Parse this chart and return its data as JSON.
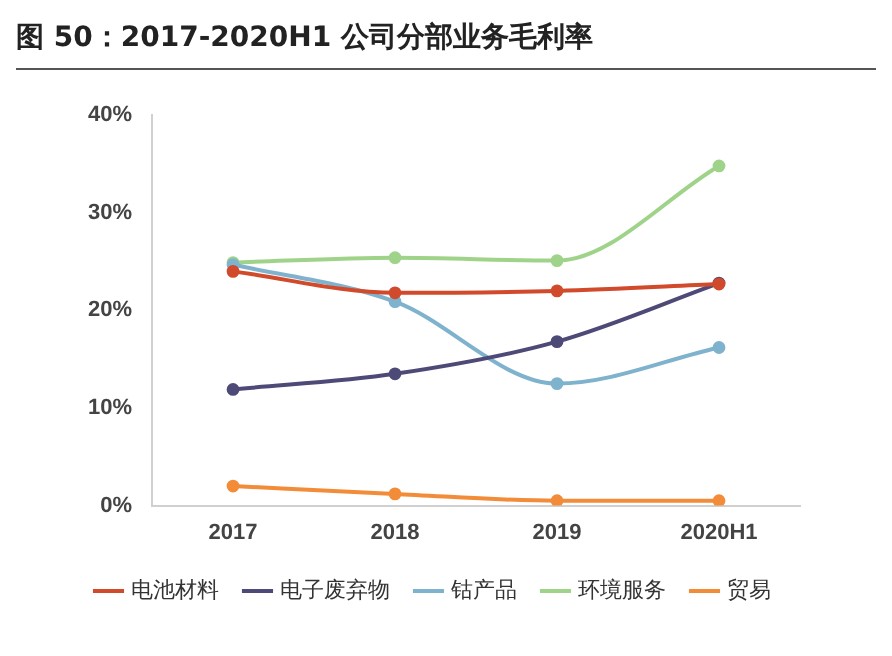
{
  "chart_data": {
    "type": "line",
    "title": "图 50：2017-2020H1 公司分部业务毛利率",
    "categories": [
      "2017",
      "2018",
      "2019",
      "2020H1"
    ],
    "series": [
      {
        "name": "电池材料",
        "color": "#d14a2b",
        "values": [
          24.0,
          21.8,
          22.0,
          22.7
        ]
      },
      {
        "name": "电子废弃物",
        "color": "#4e4a78",
        "values": [
          11.9,
          13.5,
          16.8,
          22.8
        ]
      },
      {
        "name": "钴产品",
        "color": "#7fb2cc",
        "values": [
          24.7,
          20.9,
          12.5,
          16.2
        ]
      },
      {
        "name": "环境服务",
        "color": "#9fd38a",
        "values": [
          24.9,
          25.4,
          25.1,
          34.8
        ]
      },
      {
        "name": "贸易",
        "color": "#f28c38",
        "values": [
          2.0,
          1.2,
          0.5,
          0.5
        ]
      }
    ],
    "ylim": [
      0,
      40
    ],
    "yticks": [
      {
        "value": 0,
        "label": "0%"
      },
      {
        "value": 10,
        "label": "10%"
      },
      {
        "value": 20,
        "label": "20%"
      },
      {
        "value": 30,
        "label": "30%"
      },
      {
        "value": 40,
        "label": "40%"
      }
    ],
    "grid": false,
    "legend": "bottom",
    "marker": "circle",
    "line_style": "solid"
  }
}
